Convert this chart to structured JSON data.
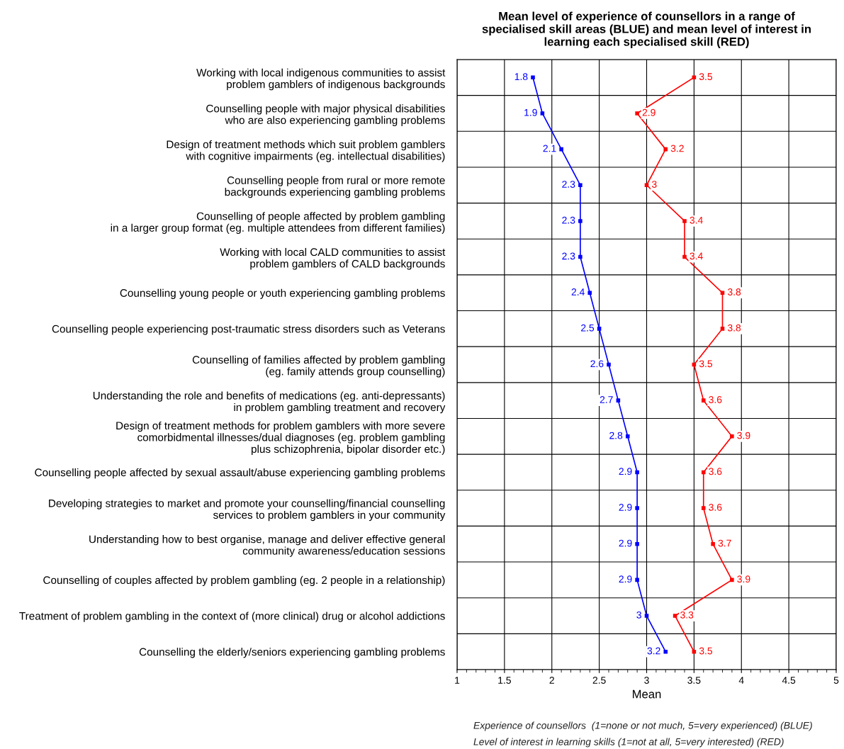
{
  "chart_data": {
    "type": "line",
    "title": "Mean level of experience of counsellors in a range of\nspecialised skill areas (BLUE) and mean level of interest in\nlearning each specialised skill (RED)",
    "xlabel": "Mean",
    "orientation": "horizontal",
    "categories": [
      "Working with local indigenous communities to assist\nproblem gamblers of indigenous backgrounds",
      "Counselling people with major physical disabilities\nwho are also experiencing gambling problems",
      "Design of treatment methods which suit problem gamblers\nwith cognitive impairments (eg. intellectual disabilities)",
      "Counselling people from rural or more remote\nbackgrounds experiencing gambling problems",
      "Counselling of people affected by problem gambling\nin a larger group format (eg. multiple attendees from different families)",
      "Working with local CALD communities to assist\nproblem gamblers of CALD backgrounds",
      "Counselling young people or youth experiencing gambling problems",
      "Counselling people experiencing post-traumatic stress disorders such as Veterans",
      "Counselling of families affected by problem gambling\n(eg. family attends group counselling)",
      "Understanding the role and benefits of medications (eg. anti-depressants)\nin problem gambling treatment and recovery",
      "Design of treatment methods for problem gamblers with more severe\ncomorbidmental illnesses/dual diagnoses (eg. problem gambling\nplus schizophrenia, bipolar disorder etc.)",
      "Counselling people affected by sexual assault/abuse experiencing gambling problems",
      "Developing strategies to market and promote your counselling/financial counselling\nservices to problem gamblers in your community",
      "Understanding how to best organise, manage and deliver effective general\ncommunity awareness/education sessions",
      "Counselling of couples affected by problem gambling (eg. 2 people in a relationship)",
      "Treatment of problem gambling in the context of (more clinical) drug or alcohol addictions",
      "Counselling the elderly/seniors experiencing gambling problems"
    ],
    "series": [
      {
        "color": "#0000ff",
        "values": [
          1.8,
          1.9,
          2.1,
          2.3,
          2.3,
          2.3,
          2.4,
          2.5,
          2.6,
          2.7,
          2.8,
          2.9,
          2.9,
          2.9,
          2.9,
          3,
          3.2
        ]
      },
      {
        "color": "#ff0000",
        "values": [
          3.5,
          2.9,
          3.2,
          3,
          3.4,
          3.4,
          3.8,
          3.8,
          3.5,
          3.6,
          3.9,
          3.6,
          3.6,
          3.7,
          3.9,
          3.3,
          3.5
        ]
      }
    ],
    "xlim": [
      1,
      5
    ],
    "xticks": [
      1,
      1.5,
      2,
      2.5,
      3,
      3.5,
      4,
      4.5,
      5
    ],
    "grid": true,
    "marker": "square",
    "line_style": "solid",
    "data_labels": true,
    "annotations": [
      "Experience of counsellors  (1=none or not much, 5=very experienced) (BLUE)",
      "Level of interest in learning skills (1=not at all, 5=very interested) (RED)"
    ]
  }
}
